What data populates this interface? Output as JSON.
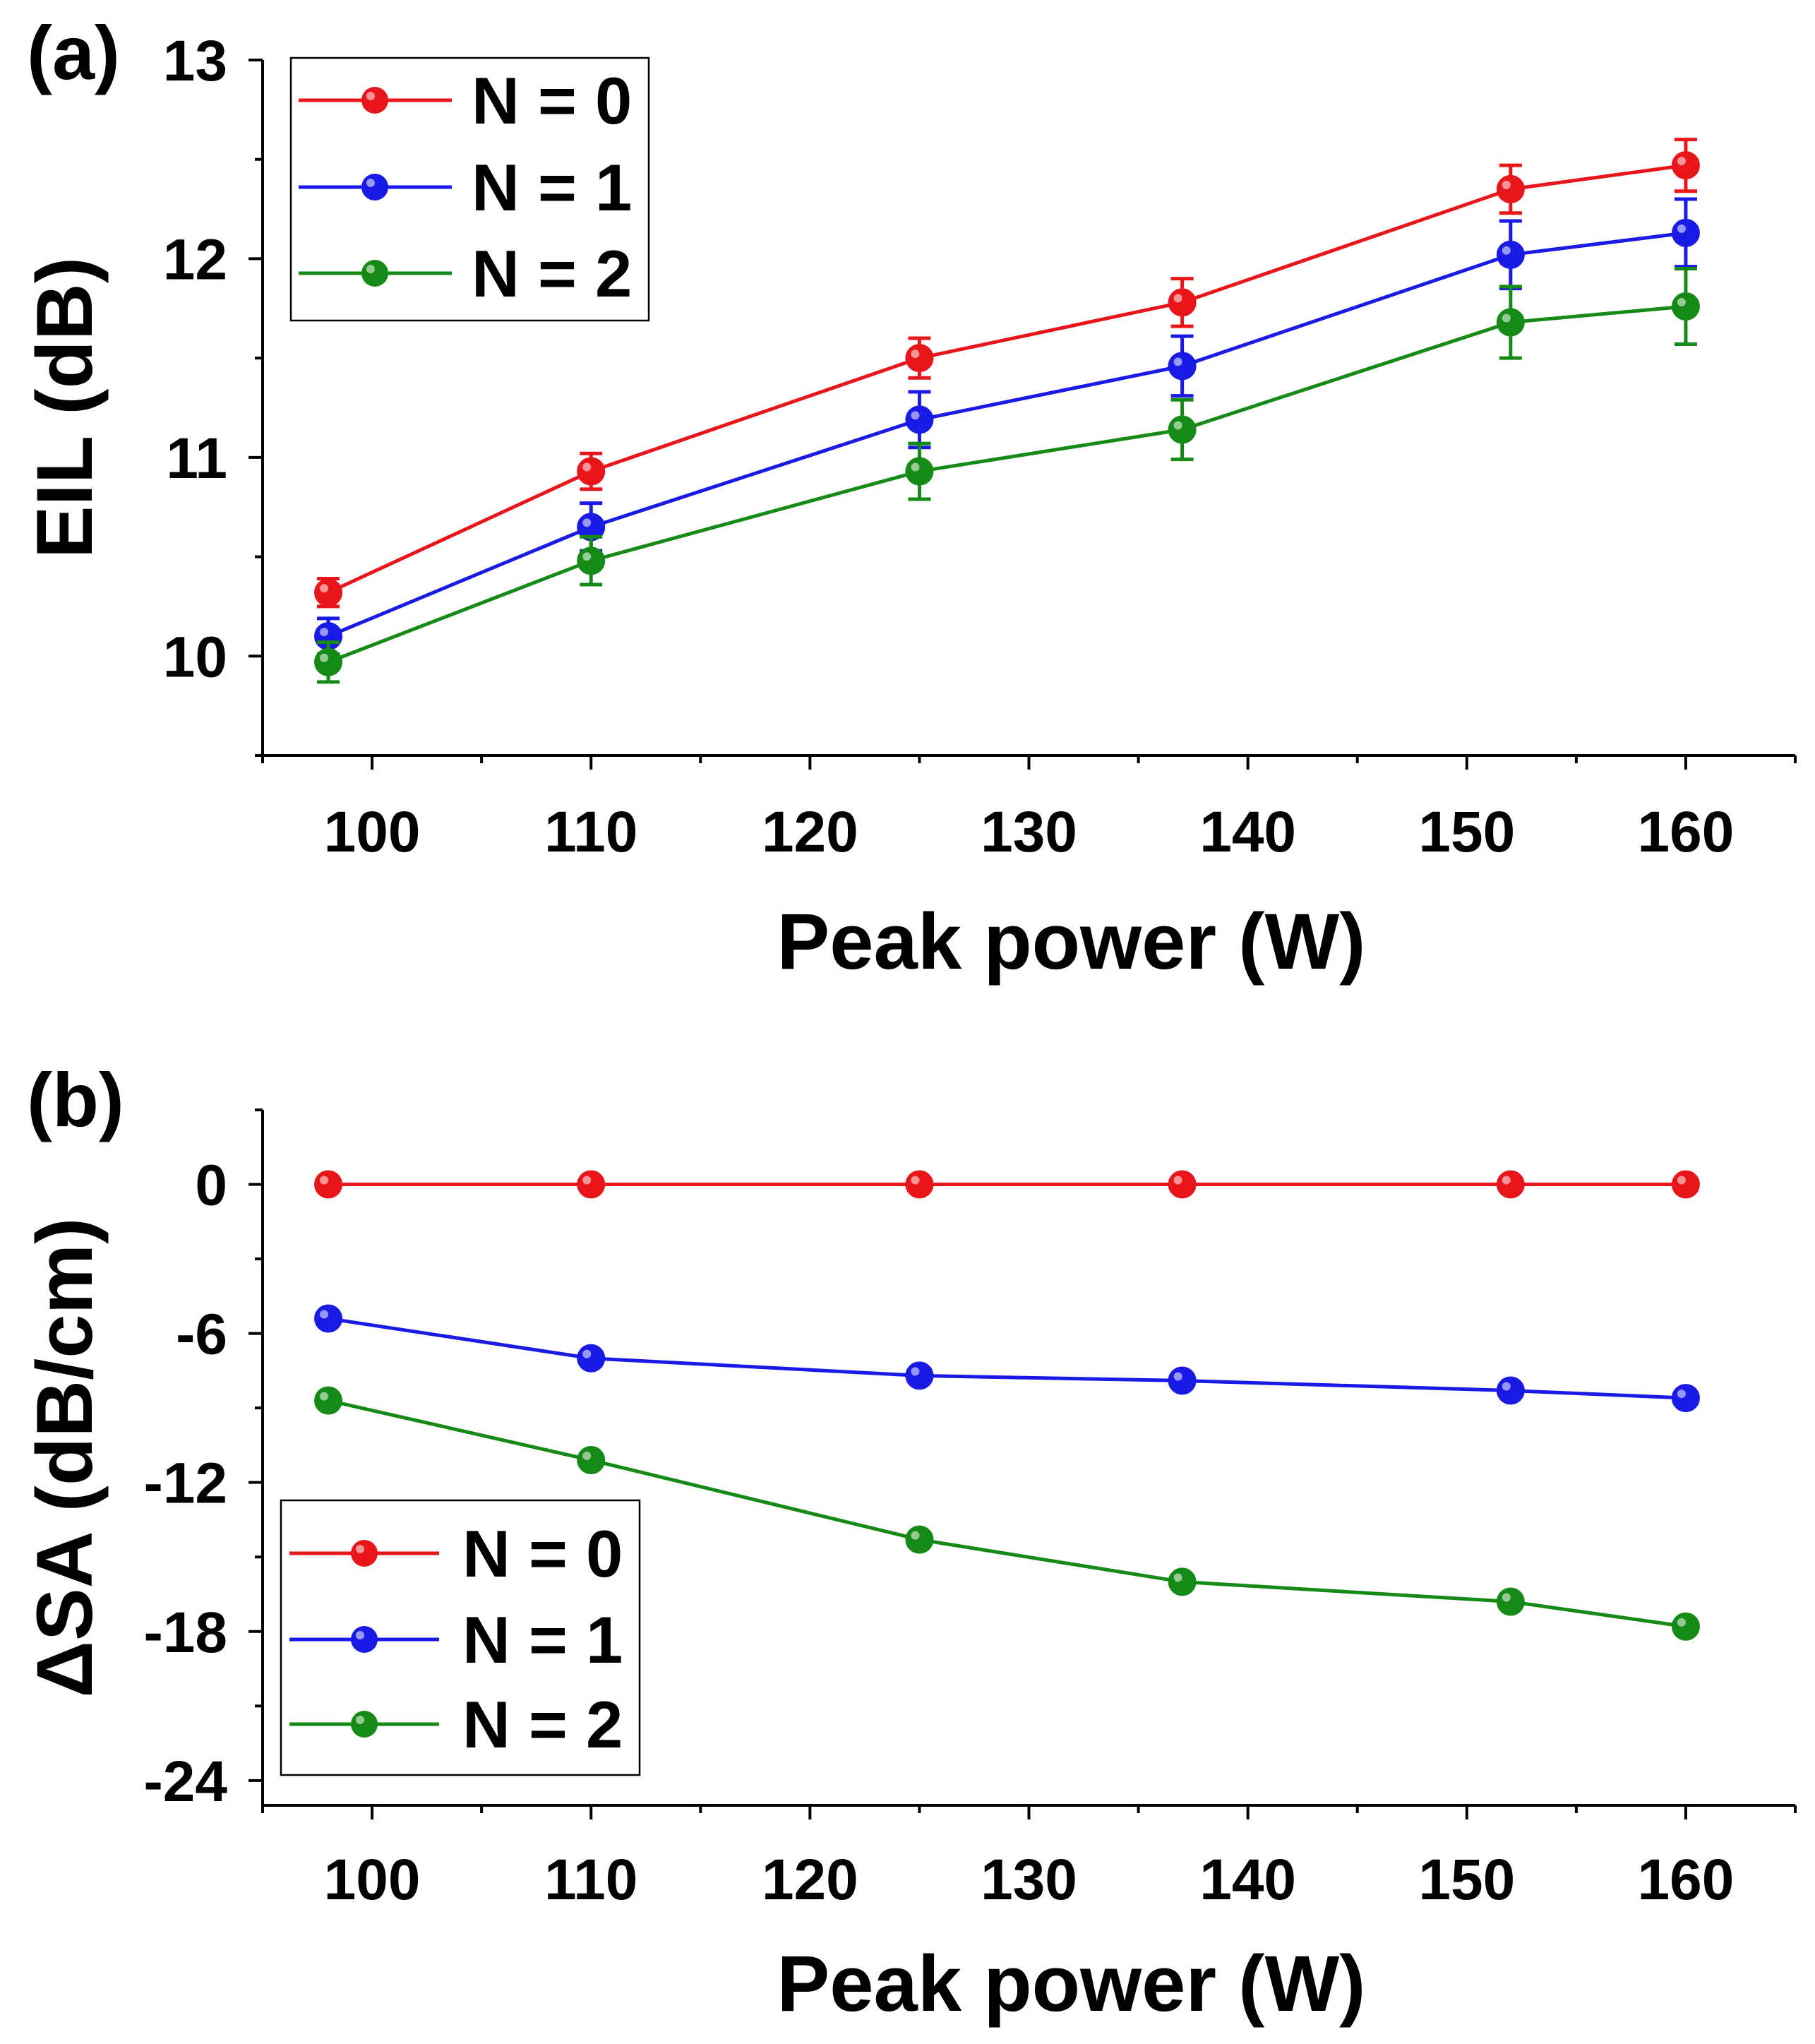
{
  "chart_data": [
    {
      "type": "line",
      "panel_label": "(a)",
      "title": "",
      "xlabel": "Peak power (W)",
      "ylabel": "EIL (dB)",
      "xlim": [
        95,
        165
      ],
      "ylim": [
        9.5,
        13
      ],
      "x_ticks": [
        100,
        110,
        120,
        130,
        140,
        150,
        160
      ],
      "y_ticks": [
        10,
        11,
        12,
        13
      ],
      "x": [
        98,
        110,
        125,
        137,
        152,
        160
      ],
      "grid": false,
      "legend_position": "top-left",
      "series": [
        {
          "name": "N = 0",
          "color": "#e8161b",
          "values": [
            10.32,
            10.93,
            11.5,
            11.78,
            12.35,
            12.47
          ],
          "errors": [
            0.07,
            0.09,
            0.1,
            0.12,
            0.12,
            0.13
          ]
        },
        {
          "name": "N = 1",
          "color": "#1a1ae6",
          "values": [
            10.1,
            10.65,
            11.19,
            11.46,
            12.02,
            12.13
          ],
          "errors": [
            0.09,
            0.12,
            0.14,
            0.15,
            0.17,
            0.17
          ]
        },
        {
          "name": "N = 2",
          "color": "#168a16",
          "values": [
            9.97,
            10.48,
            10.93,
            11.14,
            11.68,
            11.76
          ],
          "errors": [
            0.1,
            0.12,
            0.14,
            0.15,
            0.18,
            0.19
          ]
        }
      ]
    },
    {
      "type": "line",
      "panel_label": "(b)",
      "title": "",
      "xlabel": "Peak power (W)",
      "ylabel": "ΔSA (dB/cm)",
      "xlim": [
        95,
        165
      ],
      "ylim": [
        -25,
        3
      ],
      "x_ticks": [
        100,
        110,
        120,
        130,
        140,
        150,
        160
      ],
      "y_ticks": [
        0,
        -6,
        -12,
        -18,
        -24
      ],
      "x": [
        98,
        110,
        125,
        137,
        152,
        160
      ],
      "grid": false,
      "legend_position": "bottom-left",
      "series": [
        {
          "name": "N = 0",
          "color": "#e8161b",
          "values": [
            0,
            0,
            0,
            0,
            0,
            0
          ]
        },
        {
          "name": "N = 1",
          "color": "#1a1ae6",
          "values": [
            -5.4,
            -7.0,
            -7.7,
            -7.9,
            -8.3,
            -8.6
          ]
        },
        {
          "name": "N = 2",
          "color": "#168a16",
          "values": [
            -8.7,
            -11.1,
            -14.3,
            -16.0,
            -16.8,
            -17.8
          ]
        }
      ]
    }
  ]
}
